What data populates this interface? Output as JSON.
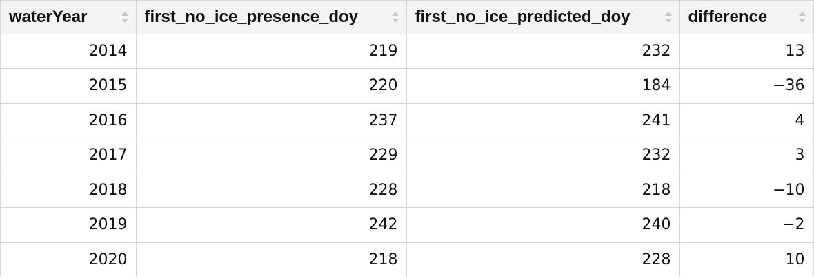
{
  "table": {
    "columns": [
      {
        "label": "waterYear",
        "icon": "sort-icon"
      },
      {
        "label": "first_no_ice_presence_doy",
        "icon": "sort-icon"
      },
      {
        "label": "first_no_ice_predicted_doy",
        "icon": "sort-icon"
      },
      {
        "label": "difference",
        "icon": "sort-icon"
      }
    ],
    "rows": [
      [
        "2014",
        "219",
        "232",
        "13"
      ],
      [
        "2015",
        "220",
        "184",
        "−36"
      ],
      [
        "2016",
        "237",
        "241",
        "4"
      ],
      [
        "2017",
        "229",
        "232",
        "3"
      ],
      [
        "2018",
        "228",
        "218",
        "−10"
      ],
      [
        "2019",
        "242",
        "240",
        "−2"
      ],
      [
        "2020",
        "218",
        "228",
        "10"
      ]
    ]
  },
  "colors": {
    "header_bg": "#f4f4f4",
    "border": "#d6d6d6",
    "sort_icon": "#c8c8c8",
    "text": "#111111"
  }
}
